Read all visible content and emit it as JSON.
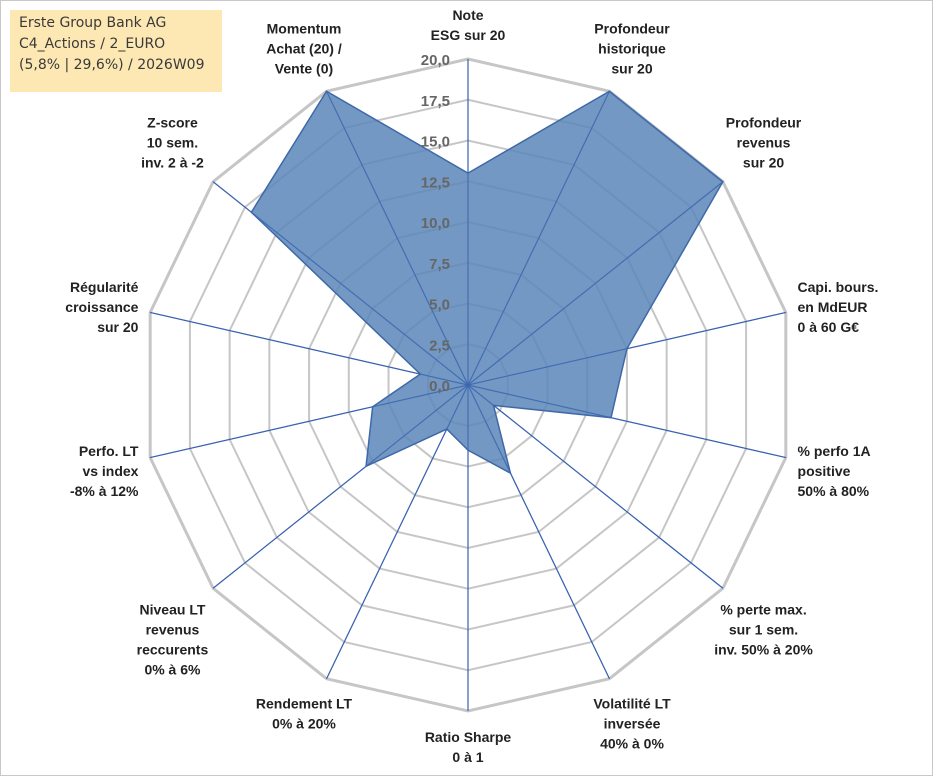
{
  "header": {
    "line1": "Erste Group Bank AG",
    "line2": "C4_Actions / 2_EURO",
    "line3": "(5,8% | 29,6%) / 2026W09"
  },
  "colors": {
    "fill": "#5b86b8",
    "stroke": "#3e69a8",
    "ring": "#c6c6c6",
    "spoke": "#3a62b0",
    "header_bg": "#fde8b4"
  },
  "chart_data": {
    "type": "radar",
    "title": "",
    "rmax": 20,
    "ticks": [
      {
        "value": 0,
        "label": "0,0"
      },
      {
        "value": 2.5,
        "label": "2,5"
      },
      {
        "value": 5,
        "label": "5,0"
      },
      {
        "value": 7.5,
        "label": "7,5"
      },
      {
        "value": 10,
        "label": "10,0"
      },
      {
        "value": 12.5,
        "label": "12,5"
      },
      {
        "value": 15,
        "label": "15,0"
      },
      {
        "value": 17.5,
        "label": "17,5"
      },
      {
        "value": 20,
        "label": "20,0"
      }
    ],
    "axes": [
      {
        "lines": [
          "Note",
          "ESG sur 20"
        ]
      },
      {
        "lines": [
          "Profondeur",
          "historique",
          "sur 20"
        ]
      },
      {
        "lines": [
          "Profondeur",
          "revenus",
          "sur 20"
        ]
      },
      {
        "lines": [
          "Capi. bours.",
          "en MdEUR",
          "0 à 60 G€"
        ]
      },
      {
        "lines": [
          "% perfo 1A",
          "positive",
          "50% à 80%"
        ]
      },
      {
        "lines": [
          "% perte max.",
          "sur 1 sem.",
          "inv. 50% à 20%"
        ]
      },
      {
        "lines": [
          "Volatilité LT",
          "inversée",
          "40% à 0%"
        ]
      },
      {
        "lines": [
          "Ratio Sharpe",
          "0 à 1"
        ]
      },
      {
        "lines": [
          "Rendement LT",
          "0% à 20%"
        ]
      },
      {
        "lines": [
          "Niveau LT",
          "revenus",
          "reccurents",
          "0% à 6%"
        ]
      },
      {
        "lines": [
          "Perfo. LT",
          "vs index",
          "-8% à 12%"
        ]
      },
      {
        "lines": [
          "Régularité",
          "croissance",
          "sur 20"
        ]
      },
      {
        "lines": [
          "Z-score",
          "10 sem.",
          "inv. 2 à -2"
        ]
      },
      {
        "lines": [
          "Momentum",
          "Achat (20) /",
          "Vente (0)"
        ]
      }
    ],
    "series": [
      {
        "name": "Erste Group Bank AG",
        "values": [
          13,
          20,
          20,
          10,
          9,
          2,
          6,
          4,
          3,
          8,
          6,
          3,
          17,
          20
        ]
      }
    ]
  }
}
